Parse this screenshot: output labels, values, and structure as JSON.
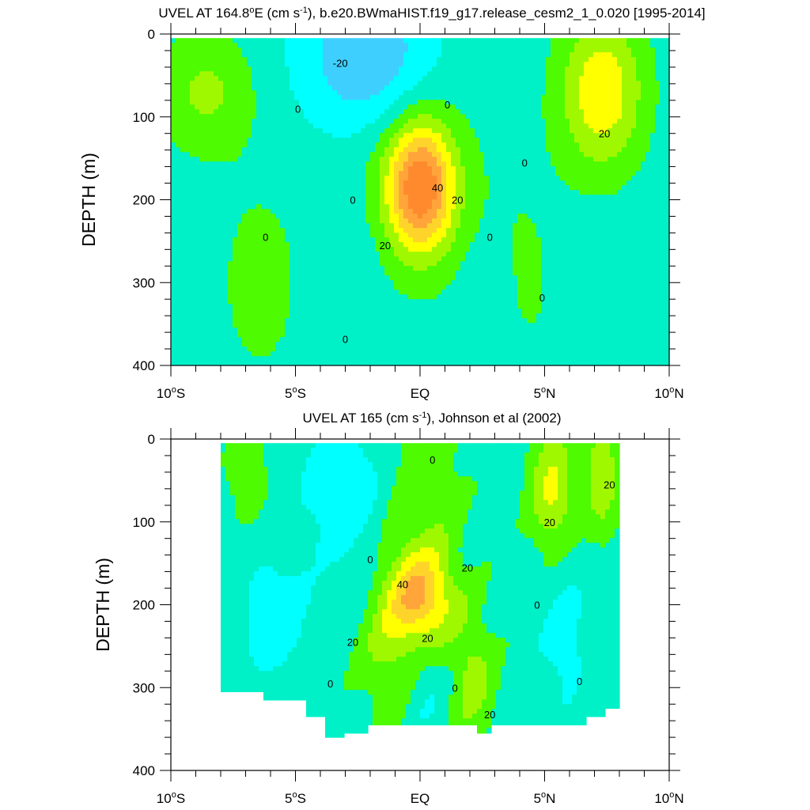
{
  "chart_data": [
    {
      "type": "contour",
      "title": "UVEL AT 164.8°E (cm s-1), b.e20.BWmaHIST.f19_g17.release_cesm2_1_0.020 [1995-2014]",
      "title_parts": {
        "pre": "UVEL AT 164.8",
        "deg": "o",
        "mid": "E (cm s",
        "sup": "-1",
        "post": "), b.e20.BWmaHIST.f19_g17.release_cesm2_1_0.020 [1995-2014]"
      },
      "ylabel": "DEPTH (m)",
      "xlim": [
        -10,
        10
      ],
      "ylim": [
        400,
        0
      ],
      "y_reversed": true,
      "x_ticks": [
        {
          "value": -10,
          "num": "10",
          "deg": "o",
          "hemi": "S"
        },
        {
          "value": -5,
          "num": "5",
          "deg": "o",
          "hemi": "S"
        },
        {
          "value": 0,
          "num": "EQ",
          "deg": "",
          "hemi": ""
        },
        {
          "value": 5,
          "num": "5",
          "deg": "o",
          "hemi": "N"
        },
        {
          "value": 10,
          "num": "10",
          "deg": "o",
          "hemi": "N"
        }
      ],
      "y_ticks": [
        0,
        100,
        200,
        300,
        400
      ],
      "y_ticklabels": [
        "0",
        "100",
        "200",
        "300",
        "400"
      ],
      "contour_interval": 10,
      "data_extent": {
        "x": [
          -10,
          10
        ],
        "depth": [
          5,
          400
        ]
      },
      "features": [
        {
          "kind": "max",
          "x": 0.0,
          "depth": 185,
          "value": 48
        },
        {
          "kind": "max",
          "x": 7.3,
          "depth": 75,
          "value": 25
        },
        {
          "kind": "max",
          "x": -8.5,
          "depth": 70,
          "value": 12
        },
        {
          "kind": "min",
          "x": -2.2,
          "depth": 40,
          "value": -28
        }
      ],
      "contour_labels": [
        {
          "text": "-20",
          "x": -3.2,
          "depth": 35
        },
        {
          "text": "0",
          "x": -4.9,
          "depth": 90
        },
        {
          "text": "0",
          "x": 1.1,
          "depth": 85
        },
        {
          "text": "0",
          "x": 4.2,
          "depth": 155
        },
        {
          "text": "0",
          "x": -2.7,
          "depth": 200
        },
        {
          "text": "0",
          "x": -6.2,
          "depth": 245
        },
        {
          "text": "0",
          "x": 2.8,
          "depth": 245
        },
        {
          "text": "0",
          "x": 4.9,
          "depth": 318
        },
        {
          "text": "0",
          "x": -3.0,
          "depth": 368
        },
        {
          "text": "40",
          "x": 0.7,
          "depth": 185
        },
        {
          "text": "20",
          "x": 1.5,
          "depth": 200
        },
        {
          "text": "20",
          "x": -1.4,
          "depth": 255
        },
        {
          "text": "20",
          "x": 7.4,
          "depth": 120
        }
      ]
    },
    {
      "type": "contour",
      "title": "UVEL AT 165 (cm s-1), Johnson et al (2002)",
      "title_parts": {
        "pre": "UVEL AT 165",
        "deg": "",
        "mid": " (cm s",
        "sup": "-1",
        "post": "), Johnson et al (2002)"
      },
      "ylabel": "DEPTH (m)",
      "xlim": [
        -10,
        10
      ],
      "ylim": [
        400,
        0
      ],
      "y_reversed": true,
      "x_ticks": [
        {
          "value": -10,
          "num": "10",
          "deg": "o",
          "hemi": "S"
        },
        {
          "value": -5,
          "num": "5",
          "deg": "o",
          "hemi": "S"
        },
        {
          "value": 0,
          "num": "EQ",
          "deg": "",
          "hemi": ""
        },
        {
          "value": 5,
          "num": "5",
          "deg": "o",
          "hemi": "N"
        },
        {
          "value": 10,
          "num": "10",
          "deg": "o",
          "hemi": "N"
        }
      ],
      "y_ticks": [
        0,
        100,
        200,
        300,
        400
      ],
      "y_ticklabels": [
        "0",
        "100",
        "200",
        "300",
        "400"
      ],
      "contour_interval": 10,
      "data_extent": {
        "x": [
          -8,
          8
        ],
        "depth": [
          5,
          360
        ]
      },
      "features": [
        {
          "kind": "max",
          "x": 0.0,
          "depth": 185,
          "value": 45
        },
        {
          "kind": "max",
          "x": 5.3,
          "depth": 60,
          "value": 25
        },
        {
          "kind": "max",
          "x": 7.3,
          "depth": 50,
          "value": 22
        },
        {
          "kind": "min",
          "x": -3.2,
          "depth": 60,
          "value": -18
        },
        {
          "kind": "min",
          "x": -5.8,
          "depth": 220,
          "value": -15
        }
      ],
      "contour_labels": [
        {
          "text": "0",
          "x": 0.5,
          "depth": 25
        },
        {
          "text": "20",
          "x": 7.6,
          "depth": 55
        },
        {
          "text": "20",
          "x": 5.2,
          "depth": 100
        },
        {
          "text": "0",
          "x": -2.0,
          "depth": 145
        },
        {
          "text": "20",
          "x": 1.9,
          "depth": 155
        },
        {
          "text": "40",
          "x": -0.7,
          "depth": 175
        },
        {
          "text": "0",
          "x": 4.7,
          "depth": 200
        },
        {
          "text": "20",
          "x": -2.7,
          "depth": 245
        },
        {
          "text": "20",
          "x": 0.3,
          "depth": 240
        },
        {
          "text": "0",
          "x": -3.6,
          "depth": 295
        },
        {
          "text": "0",
          "x": 1.4,
          "depth": 300
        },
        {
          "text": "20",
          "x": 2.8,
          "depth": 332
        },
        {
          "text": "0",
          "x": 6.4,
          "depth": 292
        }
      ]
    }
  ],
  "color_levels": [
    {
      "le": -20,
      "color": "#3fcfff"
    },
    {
      "le": -10,
      "color": "#00ffff"
    },
    {
      "le": 0,
      "color": "#00f0c8"
    },
    {
      "le": 10,
      "color": "#4efb00"
    },
    {
      "le": 20,
      "color": "#a0f800"
    },
    {
      "le": 30,
      "color": "#ffff00"
    },
    {
      "le": 40,
      "color": "#ffd42a"
    },
    {
      "le": 50,
      "color": "#ffa53a"
    },
    {
      "le": 999,
      "color": "#ff8a2e"
    }
  ]
}
